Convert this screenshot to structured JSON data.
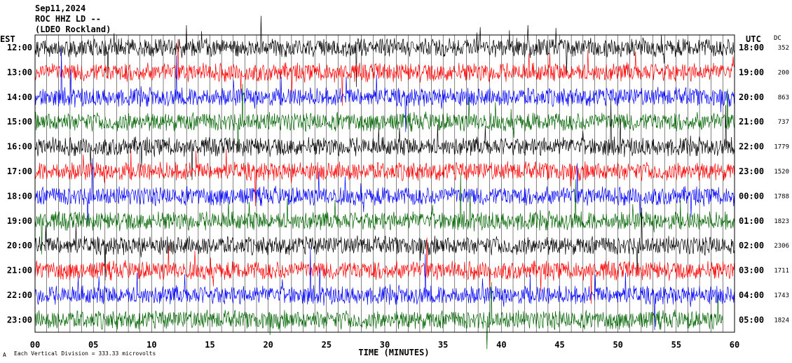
{
  "header": {
    "date": "Sep11,2024",
    "station": "ROC HHZ LD --",
    "network": "(LDEO Rockland)"
  },
  "axes": {
    "left_label": "EST",
    "right_label": "UTC",
    "dc_label": "DC",
    "xlabel": "TIME (MINUTES)",
    "footnote": "Each Vertical Division = 333.33 microvolts",
    "footnote_mark": "A"
  },
  "chart_data": {
    "type": "line",
    "title": "",
    "xlabel": "TIME (MINUTES)",
    "xlim": [
      0,
      60
    ],
    "x_ticks": [
      "00",
      "05",
      "10",
      "15",
      "20",
      "25",
      "30",
      "35",
      "40",
      "45",
      "50",
      "55",
      "60"
    ],
    "grid": "vertical lines every minute",
    "rows": [
      {
        "est": "12:00",
        "utc": "18:00",
        "dc": "352",
        "color": "#000000",
        "end_minute": 60
      },
      {
        "est": "13:00",
        "utc": "19:00",
        "dc": "200",
        "color": "#ff0000",
        "end_minute": 60
      },
      {
        "est": "14:00",
        "utc": "20:00",
        "dc": "863",
        "color": "#0000ff",
        "end_minute": 60
      },
      {
        "est": "15:00",
        "utc": "21:00",
        "dc": "737",
        "color": "#006400",
        "end_minute": 60
      },
      {
        "est": "16:00",
        "utc": "22:00",
        "dc": "1779",
        "color": "#000000",
        "end_minute": 60
      },
      {
        "est": "17:00",
        "utc": "23:00",
        "dc": "1520",
        "color": "#ff0000",
        "end_minute": 60
      },
      {
        "est": "18:00",
        "utc": "00:00",
        "dc": "1788",
        "color": "#0000ff",
        "end_minute": 60
      },
      {
        "est": "19:00",
        "utc": "01:00",
        "dc": "1823",
        "color": "#006400",
        "end_minute": 60
      },
      {
        "est": "20:00",
        "utc": "02:00",
        "dc": "2306",
        "color": "#000000",
        "end_minute": 60
      },
      {
        "est": "21:00",
        "utc": "03:00",
        "dc": "1711",
        "color": "#ff0000",
        "end_minute": 60
      },
      {
        "est": "22:00",
        "utc": "04:00",
        "dc": "1743",
        "color": "#0000ff",
        "end_minute": 60
      },
      {
        "est": "23:00",
        "utc": "05:00",
        "dc": "1824",
        "color": "#006400",
        "end_minute": 59
      }
    ]
  }
}
